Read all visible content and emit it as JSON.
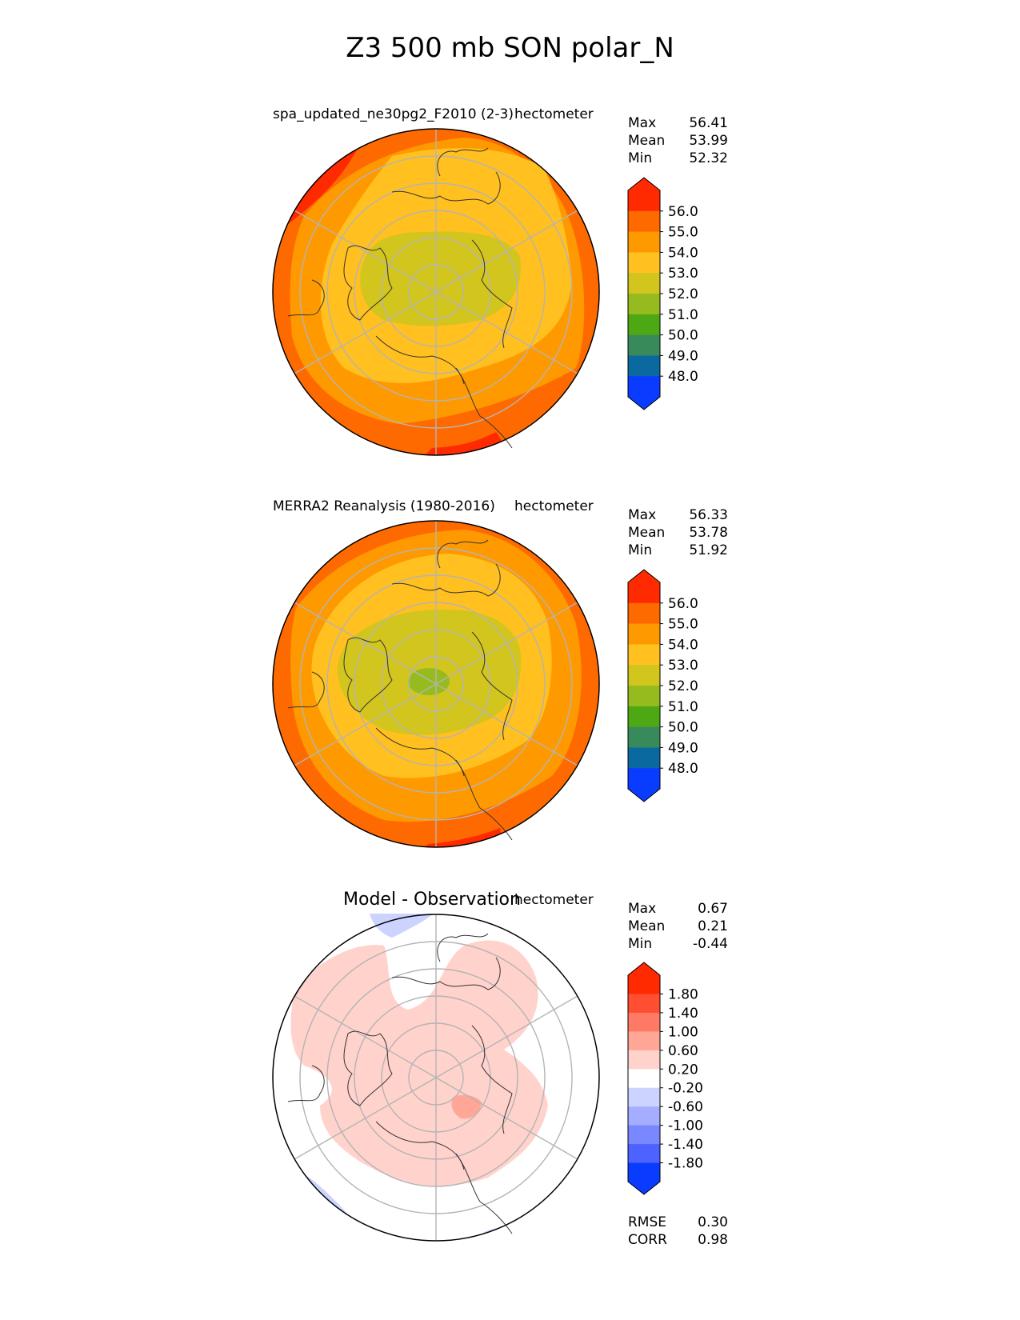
{
  "figure_title": "Z3 500 mb SON polar_N",
  "colors": {
    "c56": "#ff2a00",
    "c55": "#ff6a00",
    "c54": "#ff9900",
    "c53": "#ffc020",
    "c52": "#d2c51e",
    "c51": "#96bb1e",
    "c50": "#4ea814",
    "c49": "#388a5a",
    "c48": "#0a6aa0",
    "c47": "#0a3cff",
    "d_pos1": "#ffd2cc",
    "d_pos2": "#ffa696",
    "d_pos3": "#ff7a64",
    "d_pos4": "#ff4e32",
    "d_pos5": "#ff2a00",
    "d_zero": "#ffffff",
    "d_neg1": "#cdd3ff",
    "d_neg2": "#a4adff",
    "d_neg3": "#7a88ff",
    "d_neg4": "#4e62ff",
    "d_neg5": "#0a3cff",
    "grid": "#b4b4b4",
    "coast": "#333333"
  },
  "chart_data": [
    {
      "type": "heatmap",
      "panel": "test",
      "title": "spa_updated_ne30pg2_F2010 (2-3)",
      "units": "hectometer",
      "stats": {
        "max_label": "Max",
        "max": "56.41",
        "mean_label": "Mean",
        "mean": "53.99",
        "min_label": "Min",
        "min": "52.32"
      },
      "colorbar_ticks": [
        "56.0",
        "55.0",
        "54.0",
        "53.0",
        "52.0",
        "51.0",
        "50.0",
        "49.0",
        "48.0"
      ],
      "levels": [
        48.0,
        49.0,
        50.0,
        51.0,
        52.0,
        53.0,
        54.0,
        55.0,
        56.0
      ]
    },
    {
      "type": "heatmap",
      "panel": "reference",
      "title": "MERRA2 Reanalysis (1980-2016)",
      "units": "hectometer",
      "stats": {
        "max_label": "Max",
        "max": "56.33",
        "mean_label": "Mean",
        "mean": "53.78",
        "min_label": "Min",
        "min": "51.92"
      },
      "colorbar_ticks": [
        "56.0",
        "55.0",
        "54.0",
        "53.0",
        "52.0",
        "51.0",
        "50.0",
        "49.0",
        "48.0"
      ],
      "levels": [
        48.0,
        49.0,
        50.0,
        51.0,
        52.0,
        53.0,
        54.0,
        55.0,
        56.0
      ]
    },
    {
      "type": "heatmap",
      "panel": "difference",
      "title": "Model - Observation",
      "units": "hectometer",
      "stats": {
        "max_label": "Max",
        "max": "0.67",
        "mean_label": "Mean",
        "mean": "0.21",
        "min_label": "Min",
        "min": "-0.44"
      },
      "colorbar_ticks": [
        "1.80",
        "1.40",
        "1.00",
        "0.60",
        "0.20",
        "-0.20",
        "-0.60",
        "-1.00",
        "-1.40",
        "-1.80"
      ],
      "levels": [
        -1.8,
        -1.4,
        -1.0,
        -0.6,
        -0.2,
        0.2,
        0.6,
        1.0,
        1.4,
        1.8
      ],
      "metrics": {
        "rmse_label": "RMSE",
        "rmse": "0.30",
        "corr_label": "CORR",
        "corr": "0.98"
      }
    }
  ]
}
